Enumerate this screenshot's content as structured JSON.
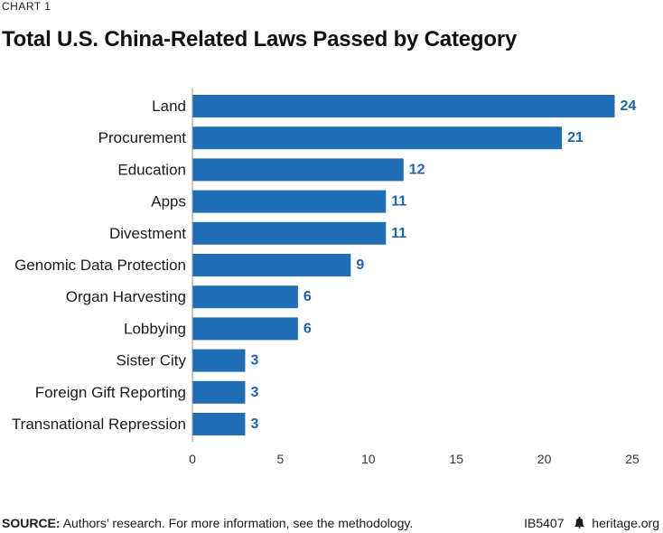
{
  "header": {
    "kicker": "CHART 1",
    "title": "Total U.S. China-Related Laws Passed by Category"
  },
  "footer": {
    "source_label": "SOURCE:",
    "source_text": "Authors’ research. For more information, see the methodology.",
    "report_id": "IB5407",
    "site": "heritage.org",
    "logo_icon": "liberty-bell-icon"
  },
  "colors": {
    "bar": "#1f6db5",
    "value_label": "#1f63a8",
    "axis": "#9a9a9a"
  },
  "chart_data": {
    "type": "bar",
    "orientation": "horizontal",
    "categories": [
      "Land",
      "Procurement",
      "Education",
      "Apps",
      "Divestment",
      "Genomic Data Protection",
      "Organ Harvesting",
      "Lobbying",
      "Sister City",
      "Foreign Gift Reporting",
      "Transnational Repression"
    ],
    "values": [
      24,
      21,
      12,
      11,
      11,
      9,
      6,
      6,
      3,
      3,
      3
    ],
    "xlim": [
      0,
      25
    ],
    "xticks": [
      0,
      5,
      10,
      15,
      20,
      25
    ],
    "grid": false,
    "data_labels": true
  }
}
